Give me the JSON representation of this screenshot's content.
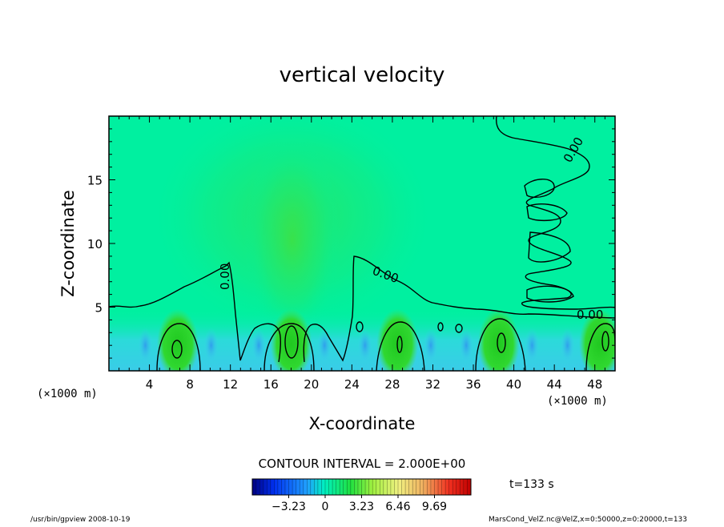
{
  "chart_data": {
    "type": "heatmap",
    "title": "vertical velocity",
    "xlabel": "X-coordinate",
    "ylabel": "Z-coordinate",
    "x_unit": "(×1000 m)",
    "y_unit": "(×1000 m)",
    "xlim": [
      0,
      50
    ],
    "ylim": [
      0,
      20
    ],
    "x_ticks": [
      4,
      8,
      12,
      16,
      20,
      24,
      28,
      32,
      36,
      40,
      44,
      48
    ],
    "y_ticks": [
      5,
      10,
      15
    ],
    "contour_interval_text": "CONTOUR INTERVAL = 2.000E+00",
    "contour_labels": [
      "0.00",
      "0.00",
      "0.00",
      "0.00"
    ],
    "colorbar": {
      "min": -6.46,
      "max": 12.92,
      "ticks": [
        -3.23,
        0,
        3.23,
        6.46,
        9.69
      ]
    },
    "updraft_cores_x": [
      6.8,
      18,
      28.5,
      38.5,
      48.5
    ],
    "time_label": "t=133 s"
  },
  "footer": {
    "left": "/usr/bin/gpview   2008-10-19",
    "right": "MarsCond_VelZ.nc@VelZ,x=0:50000,z=0:20000,t=133"
  },
  "colors": {
    "background_field": "#00f0a0",
    "updraft": "#28d828",
    "downdraft": "#40c0f0",
    "contour": "#000000"
  }
}
